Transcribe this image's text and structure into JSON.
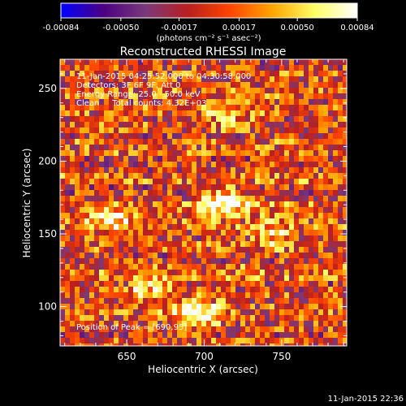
{
  "colorbar": {
    "ticks": [
      "-0.00084",
      "-0.00050",
      "-0.00017",
      "0.00017",
      "0.00050",
      "0.00084"
    ],
    "tick_values": [
      -0.00084,
      -0.0005,
      -0.00017,
      0.00017,
      0.0005,
      0.00084
    ],
    "unit_label": "(photons cm⁻² s⁻¹ asec⁻²)",
    "colors": [
      "#0000ff",
      "#4b0082",
      "#7a3a7a",
      "#b81f1f",
      "#ff4500",
      "#ffa500",
      "#ffff66",
      "#ffffff"
    ]
  },
  "chart_data": {
    "type": "heatmap",
    "title": "Reconstructed RHESSI Image",
    "xlabel": "Heliocentric X (arcsec)",
    "ylabel": "Heliocentric Y (arcsec)",
    "xlim": [
      607,
      792
    ],
    "ylim": [
      73,
      270
    ],
    "x_ticks": [
      650,
      700,
      750
    ],
    "y_ticks": [
      100,
      150,
      200,
      250
    ],
    "x_tick_labels": [
      "650",
      "700",
      "750"
    ],
    "y_tick_labels": [
      "100",
      "150",
      "200",
      "250"
    ],
    "value_range": [
      -0.00084,
      0.00084
    ],
    "sources": [
      {
        "x": 695,
        "y": 95,
        "peak": 0.00084
      },
      {
        "x": 640,
        "y": 160,
        "peak": 0.0006
      },
      {
        "x": 712,
        "y": 172,
        "peak": 0.0008
      },
      {
        "x": 665,
        "y": 112,
        "peak": 0.0005
      },
      {
        "x": 715,
        "y": 232,
        "peak": 0.0004
      },
      {
        "x": 745,
        "y": 150,
        "peak": 0.0004
      }
    ],
    "annotations": {
      "time_range": "11-Jan-2015 04:25:52.000 to 04:30:58.000",
      "detectors": "Detectors: 3F 6F 9F, Att 0",
      "energy_range": "Energy Range: 25.0 - 50.0 keV",
      "method": "Clean     Total counts: 4.32E+03",
      "peak_position": "Position of Peak = [690,95]"
    }
  },
  "footer": {
    "timestamp": "11-Jan-2015 22:36"
  }
}
